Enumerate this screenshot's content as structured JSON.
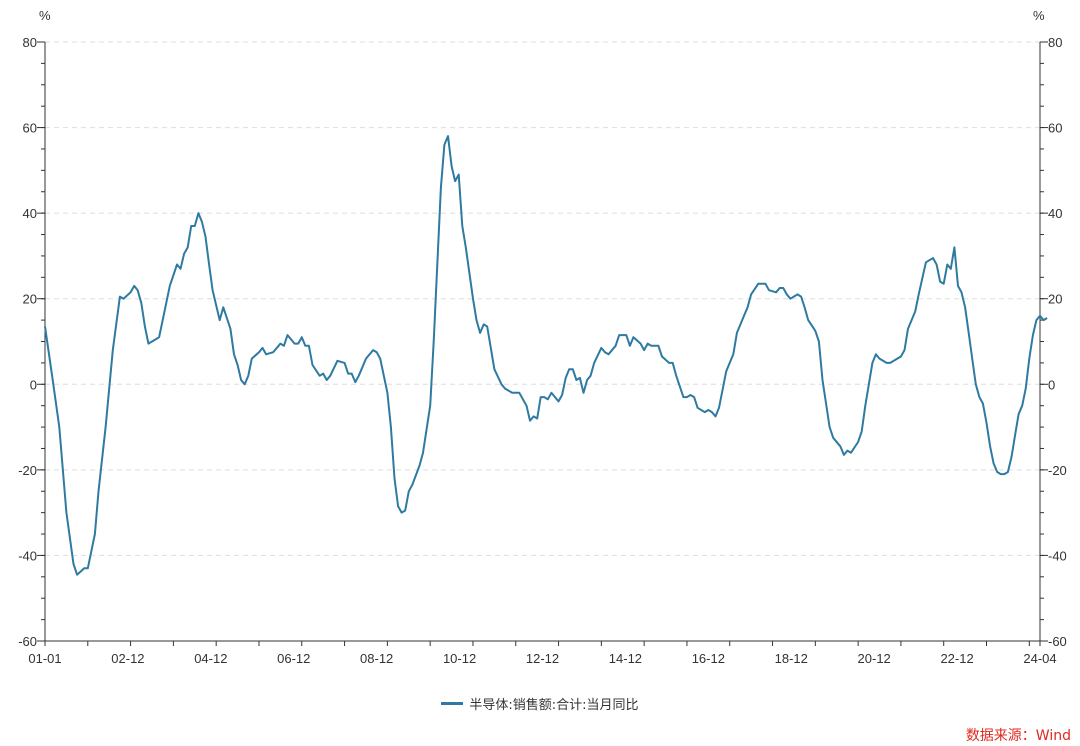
{
  "chart_data": {
    "type": "line",
    "y_unit_left": "%",
    "y_unit_right": "%",
    "ylim": [
      -60,
      80
    ],
    "yticks": [
      -60,
      -40,
      -20,
      0,
      20,
      40,
      60,
      80
    ],
    "grid": true,
    "x_start": "2001-01",
    "x_end": "2024-04",
    "xtick_labels": [
      "01-01",
      "02-12",
      "04-12",
      "06-12",
      "08-12",
      "10-12",
      "12-12",
      "14-12",
      "16-12",
      "18-12",
      "20-12",
      "22-12",
      "24-04"
    ],
    "series": [
      {
        "name": "半导体:销售额:合计:当月同比",
        "color": "#2e7aa1",
        "points": [
          [
            "2001-01",
            13.5
          ],
          [
            "2001-03",
            2
          ],
          [
            "2001-05",
            -10
          ],
          [
            "2001-07",
            -30
          ],
          [
            "2001-09",
            -42
          ],
          [
            "2001-10",
            -44.5
          ],
          [
            "2001-12",
            -43
          ],
          [
            "2002-01",
            -43
          ],
          [
            "2002-03",
            -35
          ],
          [
            "2002-04",
            -25
          ],
          [
            "2002-06",
            -10
          ],
          [
            "2002-08",
            8
          ],
          [
            "2002-10",
            20.5
          ],
          [
            "2002-11",
            20
          ],
          [
            "2003-01",
            21.5
          ],
          [
            "2003-02",
            23
          ],
          [
            "2003-03",
            22
          ],
          [
            "2003-04",
            19
          ],
          [
            "2003-05",
            13.5
          ],
          [
            "2003-06",
            9.5
          ],
          [
            "2003-08",
            10.5
          ],
          [
            "2003-09",
            11
          ],
          [
            "2003-10",
            15
          ],
          [
            "2003-12",
            23
          ],
          [
            "2004-02",
            28
          ],
          [
            "2004-03",
            27
          ],
          [
            "2004-04",
            30.5
          ],
          [
            "2004-05",
            32
          ],
          [
            "2004-06",
            37
          ],
          [
            "2004-07",
            37
          ],
          [
            "2004-08",
            40
          ],
          [
            "2004-09",
            38
          ],
          [
            "2004-10",
            34.5
          ],
          [
            "2004-11",
            28
          ],
          [
            "2004-12",
            22
          ],
          [
            "2005-02",
            15
          ],
          [
            "2005-03",
            18
          ],
          [
            "2005-05",
            13
          ],
          [
            "2005-06",
            7
          ],
          [
            "2005-07",
            4.5
          ],
          [
            "2005-08",
            1
          ],
          [
            "2005-09",
            0
          ],
          [
            "2005-10",
            2
          ],
          [
            "2005-11",
            6
          ],
          [
            "2006-01",
            7.5
          ],
          [
            "2006-02",
            8.5
          ],
          [
            "2006-03",
            7
          ],
          [
            "2006-05",
            7.5
          ],
          [
            "2006-07",
            9.5
          ],
          [
            "2006-08",
            9
          ],
          [
            "2006-09",
            11.5
          ],
          [
            "2006-11",
            9.5
          ],
          [
            "2006-12",
            9.5
          ],
          [
            "2007-01",
            11
          ],
          [
            "2007-02",
            9
          ],
          [
            "2007-03",
            9
          ],
          [
            "2007-04",
            4.5
          ],
          [
            "2007-06",
            2
          ],
          [
            "2007-07",
            2.5
          ],
          [
            "2007-08",
            1
          ],
          [
            "2007-09",
            2
          ],
          [
            "2007-11",
            5.5
          ],
          [
            "2008-01",
            5
          ],
          [
            "2008-02",
            2.5
          ],
          [
            "2008-03",
            2.5
          ],
          [
            "2008-04",
            0.5
          ],
          [
            "2008-05",
            2
          ],
          [
            "2008-07",
            6
          ],
          [
            "2008-09",
            8
          ],
          [
            "2008-10",
            7.5
          ],
          [
            "2008-11",
            6
          ],
          [
            "2009-01",
            -2
          ],
          [
            "2009-02",
            -10
          ],
          [
            "2009-03",
            -22
          ],
          [
            "2009-04",
            -28.5
          ],
          [
            "2009-05",
            -30
          ],
          [
            "2009-06",
            -29.5
          ],
          [
            "2009-07",
            -25
          ],
          [
            "2009-08",
            -23.5
          ],
          [
            "2009-10",
            -19
          ],
          [
            "2009-11",
            -16
          ],
          [
            "2010-01",
            -5
          ],
          [
            "2010-02",
            10
          ],
          [
            "2010-04",
            46
          ],
          [
            "2010-05",
            56
          ],
          [
            "2010-06",
            58
          ],
          [
            "2010-07",
            51
          ],
          [
            "2010-08",
            47.5
          ],
          [
            "2010-09",
            49
          ],
          [
            "2010-10",
            37
          ],
          [
            "2010-11",
            32
          ],
          [
            "2011-01",
            20
          ],
          [
            "2011-02",
            15
          ],
          [
            "2011-03",
            12
          ],
          [
            "2011-04",
            14
          ],
          [
            "2011-05",
            13.5
          ],
          [
            "2011-07",
            3.5
          ],
          [
            "2011-09",
            0
          ],
          [
            "2011-10",
            -1
          ],
          [
            "2011-11",
            -1.5
          ],
          [
            "2011-12",
            -2
          ],
          [
            "2012-02",
            -2
          ],
          [
            "2012-04",
            -5
          ],
          [
            "2012-05",
            -8.5
          ],
          [
            "2012-06",
            -7.5
          ],
          [
            "2012-07",
            -8
          ],
          [
            "2012-08",
            -3
          ],
          [
            "2012-09",
            -3
          ],
          [
            "2012-10",
            -3.5
          ],
          [
            "2012-11",
            -2
          ],
          [
            "2013-01",
            -4
          ],
          [
            "2013-02",
            -2.5
          ],
          [
            "2013-03",
            1.5
          ],
          [
            "2013-04",
            3.5
          ],
          [
            "2013-05",
            3.5
          ],
          [
            "2013-06",
            1
          ],
          [
            "2013-07",
            1.5
          ],
          [
            "2013-08",
            -2
          ],
          [
            "2013-09",
            1
          ],
          [
            "2013-10",
            2
          ],
          [
            "2013-11",
            5
          ],
          [
            "2014-01",
            8.5
          ],
          [
            "2014-02",
            7.5
          ],
          [
            "2014-03",
            7
          ],
          [
            "2014-05",
            9
          ],
          [
            "2014-06",
            11.5
          ],
          [
            "2014-08",
            11.5
          ],
          [
            "2014-09",
            9
          ],
          [
            "2014-10",
            11
          ],
          [
            "2014-12",
            9.5
          ],
          [
            "2015-01",
            8
          ],
          [
            "2015-02",
            9.5
          ],
          [
            "2015-03",
            9
          ],
          [
            "2015-05",
            9
          ],
          [
            "2015-06",
            6.5
          ],
          [
            "2015-08",
            5
          ],
          [
            "2015-09",
            5
          ],
          [
            "2015-10",
            2
          ],
          [
            "2015-12",
            -3
          ],
          [
            "2016-01",
            -3
          ],
          [
            "2016-02",
            -2.5
          ],
          [
            "2016-03",
            -3
          ],
          [
            "2016-04",
            -5.5
          ],
          [
            "2016-06",
            -6.5
          ],
          [
            "2016-07",
            -6
          ],
          [
            "2016-08",
            -6.5
          ],
          [
            "2016-09",
            -7.5
          ],
          [
            "2016-10",
            -5.5
          ],
          [
            "2016-12",
            3
          ],
          [
            "2017-01",
            5
          ],
          [
            "2017-02",
            7
          ],
          [
            "2017-03",
            12
          ],
          [
            "2017-05",
            16
          ],
          [
            "2017-06",
            18
          ],
          [
            "2017-07",
            21
          ],
          [
            "2017-09",
            23.5
          ],
          [
            "2017-11",
            23.5
          ],
          [
            "2017-12",
            22
          ],
          [
            "2018-02",
            21.5
          ],
          [
            "2018-03",
            22.5
          ],
          [
            "2018-04",
            22.5
          ],
          [
            "2018-05",
            21
          ],
          [
            "2018-06",
            20
          ],
          [
            "2018-08",
            21
          ],
          [
            "2018-09",
            20.5
          ],
          [
            "2018-10",
            18
          ],
          [
            "2018-11",
            15
          ],
          [
            "2019-01",
            12.5
          ],
          [
            "2019-02",
            10
          ],
          [
            "2019-03",
            1
          ],
          [
            "2019-05",
            -10
          ],
          [
            "2019-06",
            -12.5
          ],
          [
            "2019-08",
            -14.5
          ],
          [
            "2019-09",
            -16.5
          ],
          [
            "2019-10",
            -15.5
          ],
          [
            "2019-11",
            -16
          ],
          [
            "2020-01",
            -13.5
          ],
          [
            "2020-02",
            -11
          ],
          [
            "2020-03",
            -5
          ],
          [
            "2020-05",
            5
          ],
          [
            "2020-06",
            7
          ],
          [
            "2020-07",
            6
          ],
          [
            "2020-09",
            5
          ],
          [
            "2020-10",
            5
          ],
          [
            "2020-11",
            5.5
          ],
          [
            "2021-01",
            6.5
          ],
          [
            "2021-02",
            8
          ],
          [
            "2021-03",
            13
          ],
          [
            "2021-05",
            17
          ],
          [
            "2021-06",
            21
          ],
          [
            "2021-08",
            28.5
          ],
          [
            "2021-09",
            29
          ],
          [
            "2021-10",
            29.5
          ],
          [
            "2021-11",
            28
          ],
          [
            "2021-12",
            24
          ],
          [
            "2022-01",
            23.5
          ],
          [
            "2022-02",
            28
          ],
          [
            "2022-03",
            27
          ],
          [
            "2022-04",
            32
          ],
          [
            "2022-05",
            23
          ],
          [
            "2022-06",
            21.5
          ],
          [
            "2022-07",
            18
          ],
          [
            "2022-08",
            12
          ],
          [
            "2022-09",
            6
          ],
          [
            "2022-10",
            0
          ],
          [
            "2022-11",
            -3
          ],
          [
            "2022-12",
            -4.5
          ],
          [
            "2023-01",
            -9
          ],
          [
            "2023-02",
            -14.5
          ],
          [
            "2023-03",
            -18.5
          ],
          [
            "2023-04",
            -20.5
          ],
          [
            "2023-05",
            -21
          ],
          [
            "2023-06",
            -21
          ],
          [
            "2023-07",
            -20.5
          ],
          [
            "2023-08",
            -17
          ],
          [
            "2023-09",
            -12
          ],
          [
            "2023-10",
            -7
          ],
          [
            "2023-11",
            -5
          ],
          [
            "2023-12",
            -1
          ],
          [
            "2024-01",
            6
          ],
          [
            "2024-02",
            11.5
          ],
          [
            "2024-03",
            15
          ],
          [
            "2024-04",
            16
          ],
          [
            "2024-05",
            15
          ],
          [
            "2024-06",
            15.5
          ]
        ]
      }
    ]
  },
  "legend": {
    "label": "半导体:销售额:合计:当月同比"
  },
  "source": {
    "text": "数据来源：Wind"
  }
}
